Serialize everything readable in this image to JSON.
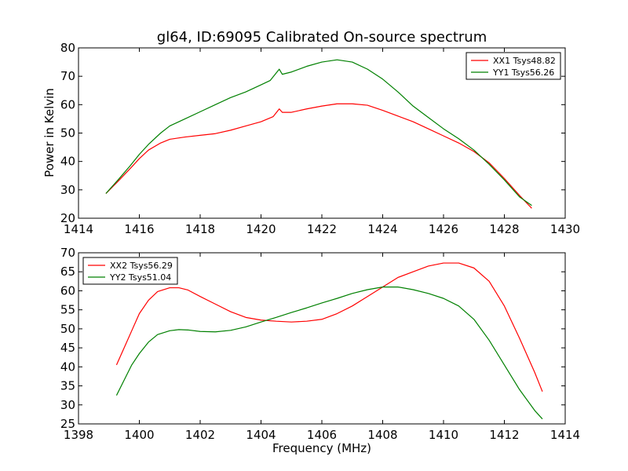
{
  "figure": {
    "title": "gl64, ID:69095 Calibrated On-source spectrum",
    "xlabel": "Frequency (MHz)",
    "ylabel": "Power in Kelvin"
  },
  "chart_data": [
    {
      "type": "line",
      "title": "gl64, ID:69095 Calibrated On-source spectrum",
      "xlabel": "",
      "ylabel": "Power in Kelvin",
      "xlim": [
        1414,
        1430
      ],
      "ylim": [
        20,
        80
      ],
      "xticks": [
        "1414",
        "1416",
        "1418",
        "1420",
        "1422",
        "1424",
        "1426",
        "1428",
        "1430"
      ],
      "yticks": [
        "20",
        "30",
        "40",
        "50",
        "60",
        "70",
        "80"
      ],
      "grid": false,
      "legend_position": "top-right",
      "series": [
        {
          "name": "XX1 Tsys48.82",
          "color": "#ff0000",
          "x": [
            1414.9,
            1415.3,
            1415.7,
            1416.0,
            1416.3,
            1416.7,
            1417.0,
            1417.5,
            1418.0,
            1418.5,
            1419.0,
            1419.5,
            1420.0,
            1420.4,
            1420.6,
            1420.7,
            1421.0,
            1421.5,
            1422.0,
            1422.5,
            1423.0,
            1423.5,
            1424.0,
            1424.5,
            1425.0,
            1425.5,
            1426.0,
            1426.5,
            1427.0,
            1427.5,
            1428.0,
            1428.5,
            1428.9
          ],
          "y": [
            28.7,
            33.0,
            37.5,
            41.0,
            44.0,
            46.5,
            47.8,
            48.6,
            49.2,
            49.8,
            51.0,
            52.5,
            54.0,
            55.8,
            58.5,
            57.3,
            57.3,
            58.5,
            59.5,
            60.3,
            60.3,
            59.8,
            58.0,
            56.0,
            54.0,
            51.5,
            49.0,
            46.5,
            43.5,
            39.5,
            34.0,
            28.0,
            23.5
          ]
        },
        {
          "name": "YY1 Tsys56.26",
          "color": "#008000",
          "x": [
            1414.9,
            1415.3,
            1415.7,
            1416.0,
            1416.3,
            1416.7,
            1417.0,
            1417.5,
            1418.0,
            1418.5,
            1419.0,
            1419.5,
            1420.0,
            1420.3,
            1420.6,
            1420.7,
            1421.0,
            1421.5,
            1422.0,
            1422.5,
            1423.0,
            1423.5,
            1424.0,
            1424.5,
            1425.0,
            1425.5,
            1426.0,
            1426.5,
            1427.0,
            1427.5,
            1428.0,
            1428.5,
            1428.9
          ],
          "y": [
            28.7,
            33.5,
            38.5,
            42.5,
            46.0,
            50.0,
            52.5,
            55.0,
            57.5,
            60.0,
            62.5,
            64.5,
            67.0,
            68.5,
            72.5,
            70.7,
            71.5,
            73.5,
            75.0,
            75.8,
            75.0,
            72.5,
            69.0,
            64.5,
            59.5,
            55.5,
            51.5,
            48.0,
            44.0,
            39.0,
            33.5,
            27.5,
            24.5
          ]
        }
      ]
    },
    {
      "type": "line",
      "title": "",
      "xlabel": "Frequency (MHz)",
      "ylabel": "",
      "xlim": [
        1398,
        1414
      ],
      "ylim": [
        25,
        70
      ],
      "xticks": [
        "1398",
        "1400",
        "1402",
        "1404",
        "1406",
        "1408",
        "1410",
        "1412",
        "1414"
      ],
      "yticks": [
        "25",
        "30",
        "35",
        "40",
        "45",
        "50",
        "55",
        "60",
        "65",
        "70"
      ],
      "grid": false,
      "legend_position": "top-left",
      "series": [
        {
          "name": "XX2 Tsys56.29",
          "color": "#ff0000",
          "x": [
            1399.25,
            1399.5,
            1399.75,
            1400.0,
            1400.3,
            1400.6,
            1401.0,
            1401.3,
            1401.6,
            1402.0,
            1402.5,
            1403.0,
            1403.5,
            1404.0,
            1404.5,
            1405.0,
            1405.5,
            1406.0,
            1406.5,
            1407.0,
            1407.5,
            1408.0,
            1408.5,
            1409.0,
            1409.5,
            1410.0,
            1410.5,
            1411.0,
            1411.5,
            1412.0,
            1412.5,
            1413.0,
            1413.25
          ],
          "y": [
            40.5,
            45.0,
            49.5,
            54.0,
            57.5,
            59.8,
            60.8,
            60.8,
            60.2,
            58.5,
            56.5,
            54.5,
            53.0,
            52.3,
            52.0,
            51.8,
            52.0,
            52.5,
            54.0,
            56.0,
            58.5,
            61.0,
            63.5,
            65.0,
            66.5,
            67.3,
            67.3,
            66.0,
            62.5,
            56.0,
            47.5,
            38.5,
            33.5
          ]
        },
        {
          "name": "YY2 Tsys51.04",
          "color": "#008000",
          "x": [
            1399.25,
            1399.5,
            1399.75,
            1400.0,
            1400.3,
            1400.6,
            1401.0,
            1401.3,
            1401.6,
            1402.0,
            1402.5,
            1403.0,
            1403.5,
            1404.0,
            1404.5,
            1405.0,
            1405.5,
            1406.0,
            1406.5,
            1407.0,
            1407.5,
            1408.0,
            1408.5,
            1409.0,
            1409.5,
            1410.0,
            1410.5,
            1411.0,
            1411.5,
            1412.0,
            1412.5,
            1413.0,
            1413.25
          ],
          "y": [
            32.5,
            36.5,
            40.5,
            43.5,
            46.5,
            48.5,
            49.5,
            49.8,
            49.7,
            49.3,
            49.2,
            49.6,
            50.5,
            51.8,
            53.0,
            54.3,
            55.5,
            56.8,
            58.0,
            59.3,
            60.3,
            61.0,
            61.0,
            60.3,
            59.3,
            58.0,
            56.0,
            52.5,
            47.0,
            40.5,
            34.0,
            28.5,
            26.3
          ]
        }
      ]
    }
  ]
}
